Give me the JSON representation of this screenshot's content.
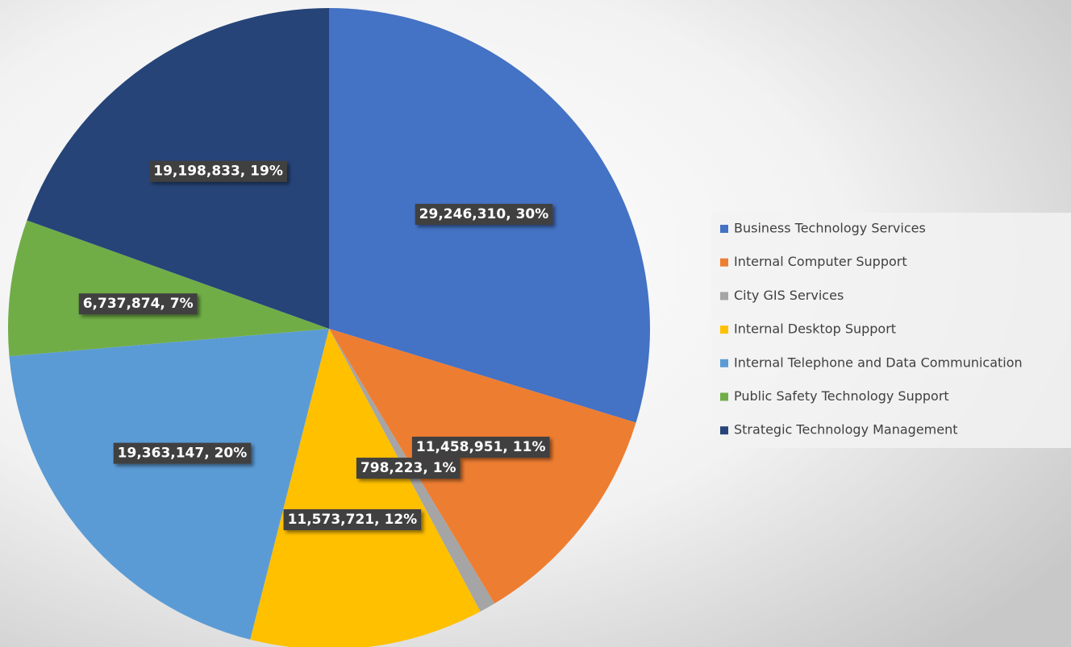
{
  "chart_data": {
    "type": "pie",
    "categories": [
      "Business Technology Services",
      "Internal Computer Support",
      "City GIS Services",
      "Internal Desktop Support",
      "Internal Telephone and Data Communication",
      "Public Safety Technology Support",
      "Strategic Technology Management"
    ],
    "values": [
      29246310,
      11458951,
      798223,
      11573721,
      19363147,
      6737874,
      19198833
    ],
    "value_labels": [
      "29,246,310, 30%",
      "11,458,951, 11%",
      "798,223, 1%",
      "11,573,721, 12%",
      "19,363,147, 20%",
      "6,737,874, 7%",
      "19,198,833, 19%"
    ],
    "colors": [
      "#4472c4",
      "#ed7d31",
      "#a5a5a5",
      "#ffc000",
      "#5b9bd5",
      "#70ad47",
      "#264478"
    ],
    "legend": "right"
  }
}
